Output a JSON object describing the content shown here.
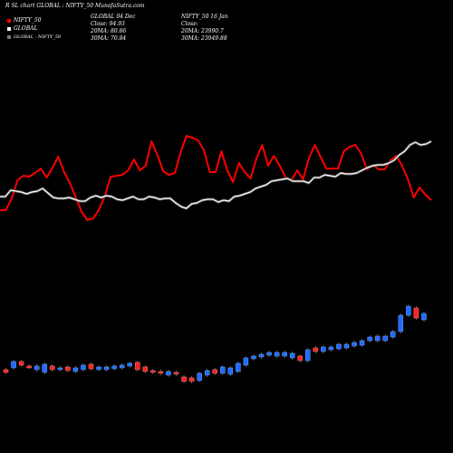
{
  "header": {
    "title": "R                SL chart GLOBAL : NIFTY_50  MunafaSutra.com",
    "col1": [
      "GLOBAL 04  Dec",
      "Close: 94.93",
      "20MA: 80.86",
      "30MA: 70.84"
    ],
    "col2": [
      "NIFTY_50  16  Jan",
      "Close:",
      "20MA: 23990.7",
      "30MA: 23949.88"
    ]
  },
  "legend": [
    {
      "label": "NIFTY_50",
      "color": "#ff0000"
    },
    {
      "label": "GLOBAL",
      "color": "#ffffff"
    },
    {
      "label": "GLOBAL - NIFTY_50",
      "color": "#777777"
    }
  ],
  "chart_data": {
    "type": "line",
    "series": [
      {
        "name": "GLOBAL",
        "color": "#ff0000",
        "values": [
          232,
          232,
          219,
          199,
          194,
          195,
          191,
          186,
          196,
          185,
          173,
          190,
          202,
          218,
          234,
          243,
          241,
          231,
          216,
          195,
          194,
          193,
          188,
          176,
          188,
          183,
          156,
          171,
          189,
          193,
          191,
          168,
          150,
          152,
          155,
          166,
          190,
          190,
          167,
          188,
          201,
          180,
          190,
          197,
          175,
          160,
          183,
          172,
          183,
          196,
          199,
          188,
          198,
          175,
          160,
          173,
          186,
          186,
          186,
          167,
          162,
          160,
          170,
          187,
          182,
          187,
          187,
          177,
          172,
          183,
          198,
          218,
          207,
          215,
          221
        ]
      },
      {
        "name": "NIFTY_50",
        "color": "#ffffff",
        "values": [
          217,
          217,
          210,
          211,
          212,
          214,
          212,
          211,
          208,
          213,
          218,
          219,
          219,
          218,
          220,
          222,
          222,
          218,
          216,
          218,
          216,
          217,
          220,
          221,
          219,
          217,
          220,
          220,
          217,
          218,
          220,
          219,
          219,
          224,
          228,
          230,
          225,
          224,
          221,
          220,
          220,
          223,
          221,
          222,
          217,
          216,
          214,
          212,
          208,
          206,
          204,
          200,
          199,
          198,
          197,
          200,
          200,
          200,
          202,
          196,
          196,
          193,
          194,
          195,
          191,
          192,
          192,
          191,
          188,
          185,
          183,
          182,
          182,
          180,
          177,
          171,
          167,
          160,
          157,
          160,
          159,
          156
        ]
      }
    ],
    "candles": [
      {
        "dir": "down",
        "o": 411,
        "c": 408
      },
      {
        "dir": "up",
        "o": 406,
        "c": 399
      },
      {
        "dir": "down",
        "o": 399,
        "c": 403
      },
      {
        "dir": "down",
        "o": 404,
        "c": 405
      },
      {
        "dir": "up",
        "o": 408,
        "c": 404
      },
      {
        "dir": "up",
        "o": 411,
        "c": 402
      },
      {
        "dir": "down",
        "o": 404,
        "c": 408
      },
      {
        "dir": "up",
        "o": 408,
        "c": 406
      },
      {
        "dir": "down",
        "o": 405,
        "c": 409
      },
      {
        "dir": "up",
        "o": 410,
        "c": 406
      },
      {
        "dir": "up",
        "o": 408,
        "c": 403
      },
      {
        "dir": "down",
        "o": 402,
        "c": 407
      },
      {
        "dir": "up",
        "o": 408,
        "c": 405
      },
      {
        "dir": "up",
        "o": 408,
        "c": 405
      },
      {
        "dir": "up",
        "o": 407,
        "c": 404
      },
      {
        "dir": "up",
        "o": 406,
        "c": 403
      },
      {
        "dir": "up",
        "o": 404,
        "c": 401
      },
      {
        "dir": "down",
        "o": 400,
        "c": 408
      },
      {
        "dir": "down",
        "o": 405,
        "c": 410
      },
      {
        "dir": "down",
        "o": 409,
        "c": 411
      },
      {
        "dir": "down",
        "o": 410,
        "c": 412
      },
      {
        "dir": "up",
        "o": 414,
        "c": 410
      },
      {
        "dir": "down",
        "o": 411,
        "c": 413
      },
      {
        "dir": "down",
        "o": 416,
        "c": 421
      },
      {
        "dir": "down",
        "o": 417,
        "c": 421
      },
      {
        "dir": "up",
        "o": 420,
        "c": 412
      },
      {
        "dir": "up",
        "o": 414,
        "c": 409
      },
      {
        "dir": "down",
        "o": 408,
        "c": 412
      },
      {
        "dir": "up",
        "o": 412,
        "c": 405
      },
      {
        "dir": "up",
        "o": 413,
        "c": 406
      },
      {
        "dir": "up",
        "o": 410,
        "c": 401
      },
      {
        "dir": "up",
        "o": 403,
        "c": 395
      },
      {
        "dir": "up",
        "o": 396,
        "c": 393
      },
      {
        "dir": "up",
        "o": 394,
        "c": 391
      },
      {
        "dir": "up",
        "o": 392,
        "c": 389
      },
      {
        "dir": "up",
        "o": 393,
        "c": 389
      },
      {
        "dir": "up",
        "o": 393,
        "c": 389
      },
      {
        "dir": "up",
        "o": 395,
        "c": 390
      },
      {
        "dir": "down",
        "o": 393,
        "c": 398
      },
      {
        "dir": "up",
        "o": 398,
        "c": 386
      },
      {
        "dir": "down",
        "o": 384,
        "c": 388
      },
      {
        "dir": "up",
        "o": 388,
        "c": 383
      },
      {
        "dir": "up",
        "o": 386,
        "c": 383
      },
      {
        "dir": "up",
        "o": 385,
        "c": 380
      },
      {
        "dir": "up",
        "o": 384,
        "c": 380
      },
      {
        "dir": "up",
        "o": 382,
        "c": 378
      },
      {
        "dir": "up",
        "o": 381,
        "c": 376
      },
      {
        "dir": "up",
        "o": 376,
        "c": 372
      },
      {
        "dir": "up",
        "o": 376,
        "c": 371
      },
      {
        "dir": "up",
        "o": 376,
        "c": 371
      },
      {
        "dir": "up",
        "o": 372,
        "c": 366
      },
      {
        "dir": "up",
        "o": 366,
        "c": 348
      },
      {
        "dir": "up",
        "o": 348,
        "c": 338
      },
      {
        "dir": "down",
        "o": 340,
        "c": 351
      },
      {
        "dir": "up",
        "o": 353,
        "c": 346
      }
    ]
  }
}
